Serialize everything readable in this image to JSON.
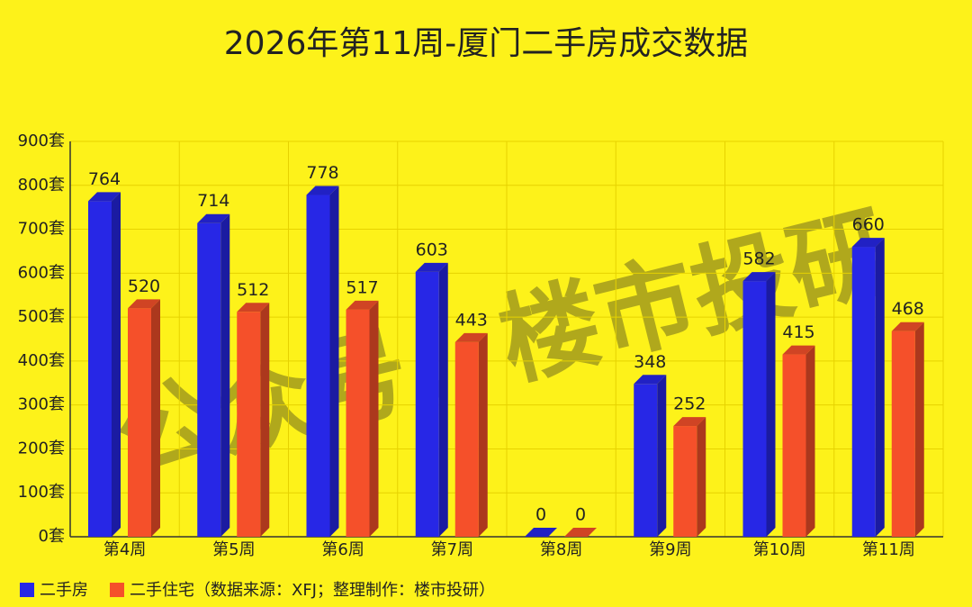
{
  "chart_data": {
    "type": "bar",
    "title": "2026年第11周-厦门二手房成交数据",
    "categories": [
      "第4周",
      "第5周",
      "第6周",
      "第7周",
      "第8周",
      "第9周",
      "第10周",
      "第11周"
    ],
    "series": [
      {
        "name": "二手房",
        "color": "#2727e6",
        "values": [
          764,
          714,
          778,
          603,
          0,
          348,
          582,
          660
        ]
      },
      {
        "name": "二手住宅",
        "color": "#f5502a",
        "values": [
          520,
          512,
          517,
          443,
          0,
          252,
          415,
          468
        ]
      }
    ],
    "ylim": [
      0,
      900
    ],
    "yticks": [
      {
        "value": 0,
        "label": "0套"
      },
      {
        "value": 100,
        "label": "100套"
      },
      {
        "value": 200,
        "label": "200套"
      },
      {
        "value": 300,
        "label": "300套"
      },
      {
        "value": 400,
        "label": "400套"
      },
      {
        "value": 500,
        "label": "500套"
      },
      {
        "value": 600,
        "label": "600套"
      },
      {
        "value": 700,
        "label": "700套"
      },
      {
        "value": 800,
        "label": "800套"
      },
      {
        "value": 900,
        "label": "900套"
      }
    ],
    "grid": true,
    "source": "（数据来源：XFJ；整理制作：楼市投研）",
    "watermark": "公众号：楼市投研"
  }
}
